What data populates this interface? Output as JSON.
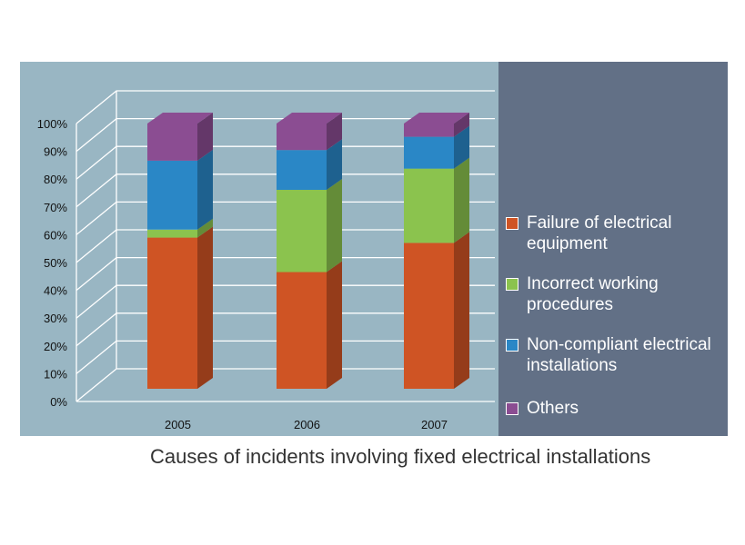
{
  "caption": "Causes of incidents involving fixed electrical installations",
  "chart_data": {
    "type": "bar",
    "stacked": true,
    "three_d": true,
    "categories": [
      "2005",
      "2006",
      "2007"
    ],
    "series": [
      {
        "name": "Failure of electrical equipment",
        "color": "#cf5424",
        "values": [
          57,
          44,
          55
        ]
      },
      {
        "name": "Incorrect working procedures",
        "color": "#8bc34e",
        "values": [
          3,
          31,
          28
        ]
      },
      {
        "name": "Non-compliant electrical installations",
        "color": "#2a87c6",
        "values": [
          26,
          15,
          12
        ]
      },
      {
        "name": "Others",
        "color": "#8b4d92",
        "values": [
          14,
          10,
          5
        ]
      }
    ],
    "ylim": [
      0,
      100
    ],
    "yticks": [
      "0%",
      "10%",
      "20%",
      "30%",
      "40%",
      "50%",
      "60%",
      "70%",
      "80%",
      "90%",
      "100%"
    ],
    "grid": true,
    "legend_position": "right"
  },
  "legend": [
    {
      "label": "Failure of electrical equipment",
      "color": "#cf5424"
    },
    {
      "label": "Incorrect working procedures",
      "color": "#8bc34e"
    },
    {
      "label": "Non-compliant electrical installations",
      "color": "#2a87c6"
    },
    {
      "label": "Others",
      "color": "#8b4d92"
    }
  ]
}
